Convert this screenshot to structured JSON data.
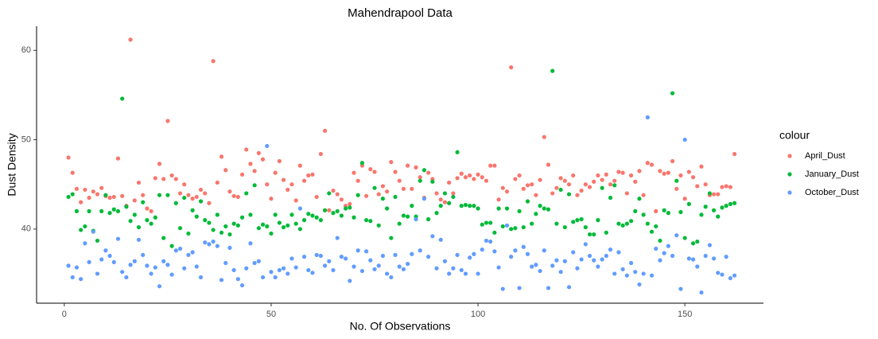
{
  "chart_data": {
    "type": "scatter",
    "title": "Mahendrapool Data",
    "x_label": "No. Of Observations",
    "y_label": "Dust Density",
    "legend_title": "colour",
    "legend": "right",
    "xlim": [
      -6.7,
      169
    ],
    "ylim": [
      31.7,
      62.7
    ],
    "xticks": [
      0,
      50,
      100,
      150
    ],
    "yticks": [
      40,
      50,
      60
    ],
    "grid": false,
    "x": [
      1,
      2,
      3,
      4,
      5,
      6,
      7,
      8,
      9,
      10,
      11,
      12,
      13,
      14,
      15,
      16,
      17,
      18,
      19,
      20,
      21,
      22,
      23,
      24,
      25,
      26,
      27,
      28,
      29,
      30,
      31,
      32,
      33,
      34,
      35,
      36,
      37,
      38,
      39,
      40,
      41,
      42,
      43,
      44,
      45,
      46,
      47,
      48,
      49,
      50,
      51,
      52,
      53,
      54,
      55,
      56,
      57,
      58,
      59,
      60,
      61,
      62,
      63,
      64,
      65,
      66,
      67,
      68,
      69,
      70,
      71,
      72,
      73,
      74,
      75,
      76,
      77,
      78,
      79,
      80,
      81,
      82,
      83,
      84,
      85,
      86,
      87,
      88,
      89,
      90,
      91,
      92,
      93,
      94,
      95,
      96,
      97,
      98,
      99,
      100,
      101,
      102,
      103,
      104,
      105,
      106,
      107,
      108,
      109,
      110,
      111,
      112,
      113,
      114,
      115,
      116,
      117,
      118,
      119,
      120,
      121,
      122,
      123,
      124,
      125,
      126,
      127,
      128,
      129,
      130,
      131,
      132,
      133,
      134,
      135,
      136,
      137,
      138,
      139,
      140,
      141,
      142,
      143,
      144,
      145,
      146,
      147,
      148,
      149,
      150,
      151,
      152,
      153,
      154,
      155,
      156,
      157,
      158,
      159,
      160,
      161,
      162
    ],
    "series": [
      {
        "name": "April_Dust",
        "color": "#F8766D",
        "values": [
          48.0,
          46.3,
          44.5,
          43.0,
          44.4,
          43.5,
          44.2,
          43.9,
          44.6,
          43.7,
          43.5,
          43.6,
          47.9,
          43.7,
          42.6,
          61.2,
          43.2,
          45.2,
          43.8,
          42.3,
          42.0,
          45.7,
          47.3,
          45.6,
          52.1,
          46.0,
          45.6,
          44.0,
          45.0,
          43.8,
          43.4,
          43.6,
          44.4,
          44.0,
          42.9,
          58.8,
          45.2,
          48.1,
          46.6,
          44.2,
          43.7,
          43.6,
          46.1,
          48.9,
          47.3,
          46.5,
          48.5,
          47.8,
          45.0,
          43.4,
          46.3,
          47.6,
          45.5,
          44.4,
          45.0,
          43.2,
          47.1,
          45.4,
          46.0,
          46.1,
          43.6,
          48.4,
          51.0,
          42.1,
          44.3,
          43.9,
          43.3,
          42.6,
          42.8,
          46.3,
          45.4,
          47.1,
          43.7,
          46.7,
          46.4,
          43.9,
          44.8,
          44.2,
          47.5,
          46.4,
          45.4,
          44.5,
          47.1,
          44.5,
          46.9,
          45.8,
          43.5,
          46.3,
          45.6,
          44.0,
          43.3,
          43.0,
          45.2,
          44.0,
          45.7,
          46.2,
          45.8,
          46.0,
          45.6,
          46.1,
          45.8,
          45.4,
          47.1,
          47.1,
          43.3,
          44.6,
          44.2,
          58.1,
          45.6,
          46.0,
          44.5,
          44.9,
          45.0,
          43.8,
          45.5,
          50.3,
          47.2,
          44.0,
          44.6,
          45.7,
          45.4,
          45.0,
          46.0,
          43.8,
          44.3,
          45.0,
          44.7,
          45.3,
          46.0,
          45.5,
          46.1,
          45.0,
          45.4,
          46.4,
          46.3,
          44.0,
          46.0,
          45.3,
          46.5,
          43.8,
          47.4,
          47.2,
          42.0,
          46.5,
          46.2,
          46.3,
          47.6,
          44.5,
          46.0,
          43.4,
          46.4,
          45.8,
          44.8,
          47.0,
          45.0,
          43.8,
          43.9,
          43.9,
          44.7,
          44.8,
          44.7,
          48.4
        ]
      },
      {
        "name": "January_Dust",
        "color": "#00BA38",
        "values": [
          43.6,
          43.9,
          42.0,
          39.9,
          40.3,
          42.0,
          39.8,
          38.7,
          42.0,
          43.8,
          41.8,
          42.2,
          42.0,
          54.6,
          42.5,
          40.9,
          41.6,
          40.2,
          43.0,
          41.0,
          40.6,
          41.3,
          43.8,
          39.0,
          43.8,
          38.1,
          42.9,
          40.1,
          43.5,
          39.5,
          42.1,
          41.4,
          43.1,
          41.0,
          40.7,
          39.9,
          41.6,
          39.6,
          40.3,
          39.4,
          40.6,
          40.4,
          41.3,
          44.0,
          41.6,
          44.9,
          40.1,
          40.5,
          40.3,
          39.5,
          41.6,
          40.7,
          40.2,
          40.4,
          41.6,
          40.6,
          40.0,
          41.0,
          41.7,
          41.5,
          41.3,
          41.0,
          42.1,
          44.0,
          41.8,
          42.0,
          41.5,
          42.3,
          42.4,
          41.3,
          43.8,
          47.4,
          41.0,
          40.9,
          44.6,
          40.4,
          43.4,
          42.3,
          39.0,
          43.6,
          40.6,
          41.5,
          41.4,
          42.6,
          41.4,
          45.4,
          46.6,
          41.1,
          45.3,
          41.8,
          42.6,
          44.0,
          42.9,
          43.6,
          48.6,
          42.6,
          42.7,
          42.6,
          42.6,
          42.3,
          40.5,
          40.7,
          40.7,
          39.6,
          42.3,
          40.3,
          42.3,
          40.0,
          40.1,
          42.0,
          40.2,
          43.1,
          40.6,
          41.7,
          42.6,
          42.3,
          42.2,
          57.7,
          40.6,
          44.4,
          40.2,
          43.9,
          40.8,
          41.0,
          41.1,
          40.2,
          39.4,
          39.4,
          41.0,
          44.6,
          39.6,
          43.5,
          44.9,
          40.6,
          40.4,
          40.6,
          40.9,
          42.0,
          43.4,
          41.6,
          40.6,
          39.7,
          40.3,
          38.7,
          42.1,
          41.8,
          55.2,
          45.4,
          41.9,
          39.0,
          42.8,
          38.4,
          38.6,
          41.6,
          42.5,
          44.0,
          42.1,
          41.4,
          42.4,
          42.6,
          42.8,
          42.9
        ]
      },
      {
        "name": "October_Dust",
        "color": "#619CFF",
        "values": [
          35.9,
          34.6,
          35.7,
          34.4,
          38.4,
          36.3,
          39.7,
          35.0,
          36.6,
          37.6,
          37.0,
          36.3,
          38.9,
          35.2,
          34.6,
          36.0,
          36.4,
          38.8,
          37.1,
          35.9,
          35.0,
          35.7,
          33.6,
          36.4,
          36.0,
          34.9,
          37.6,
          37.8,
          35.6,
          37.1,
          37.4,
          35.8,
          34.6,
          38.5,
          38.3,
          38.6,
          38.1,
          34.3,
          36.2,
          37.9,
          35.4,
          34.4,
          33.7,
          35.6,
          38.4,
          36.2,
          36.4,
          34.6,
          49.3,
          35.2,
          34.6,
          35.4,
          35.6,
          35.0,
          36.7,
          35.7,
          42.3,
          36.9,
          35.4,
          35.1,
          37.1,
          37.0,
          35.9,
          36.4,
          35.4,
          39.0,
          36.9,
          36.7,
          34.2,
          35.8,
          37.6,
          35.3,
          37.5,
          36.5,
          35.5,
          35.9,
          37.0,
          35.0,
          34.6,
          37.1,
          35.8,
          35.5,
          36.1,
          37.2,
          41.1,
          37.6,
          43.4,
          36.9,
          39.2,
          35.6,
          38.8,
          36.4,
          35.0,
          35.6,
          37.1,
          35.4,
          35.0,
          36.8,
          37.2,
          35.0,
          37.7,
          38.7,
          38.6,
          37.5,
          35.7,
          33.3,
          40.4,
          36.9,
          37.6,
          33.4,
          38.0,
          37.2,
          35.8,
          36.0,
          35.3,
          37.6,
          33.4,
          35.9,
          36.5,
          35.2,
          36.4,
          33.5,
          37.4,
          35.6,
          36.6,
          38.3,
          37.0,
          36.5,
          35.8,
          36.6,
          37.0,
          37.7,
          35.0,
          37.4,
          35.5,
          34.8,
          36.2,
          35.2,
          33.8,
          35.0,
          52.5,
          34.8,
          37.8,
          36.5,
          37.3,
          38.1,
          37.0,
          39.3,
          33.3,
          50.0,
          36.7,
          36.6,
          35.8,
          32.9,
          37.0,
          38.2,
          36.7,
          35.1,
          34.9,
          36.9,
          34.5,
          34.8
        ]
      }
    ]
  }
}
